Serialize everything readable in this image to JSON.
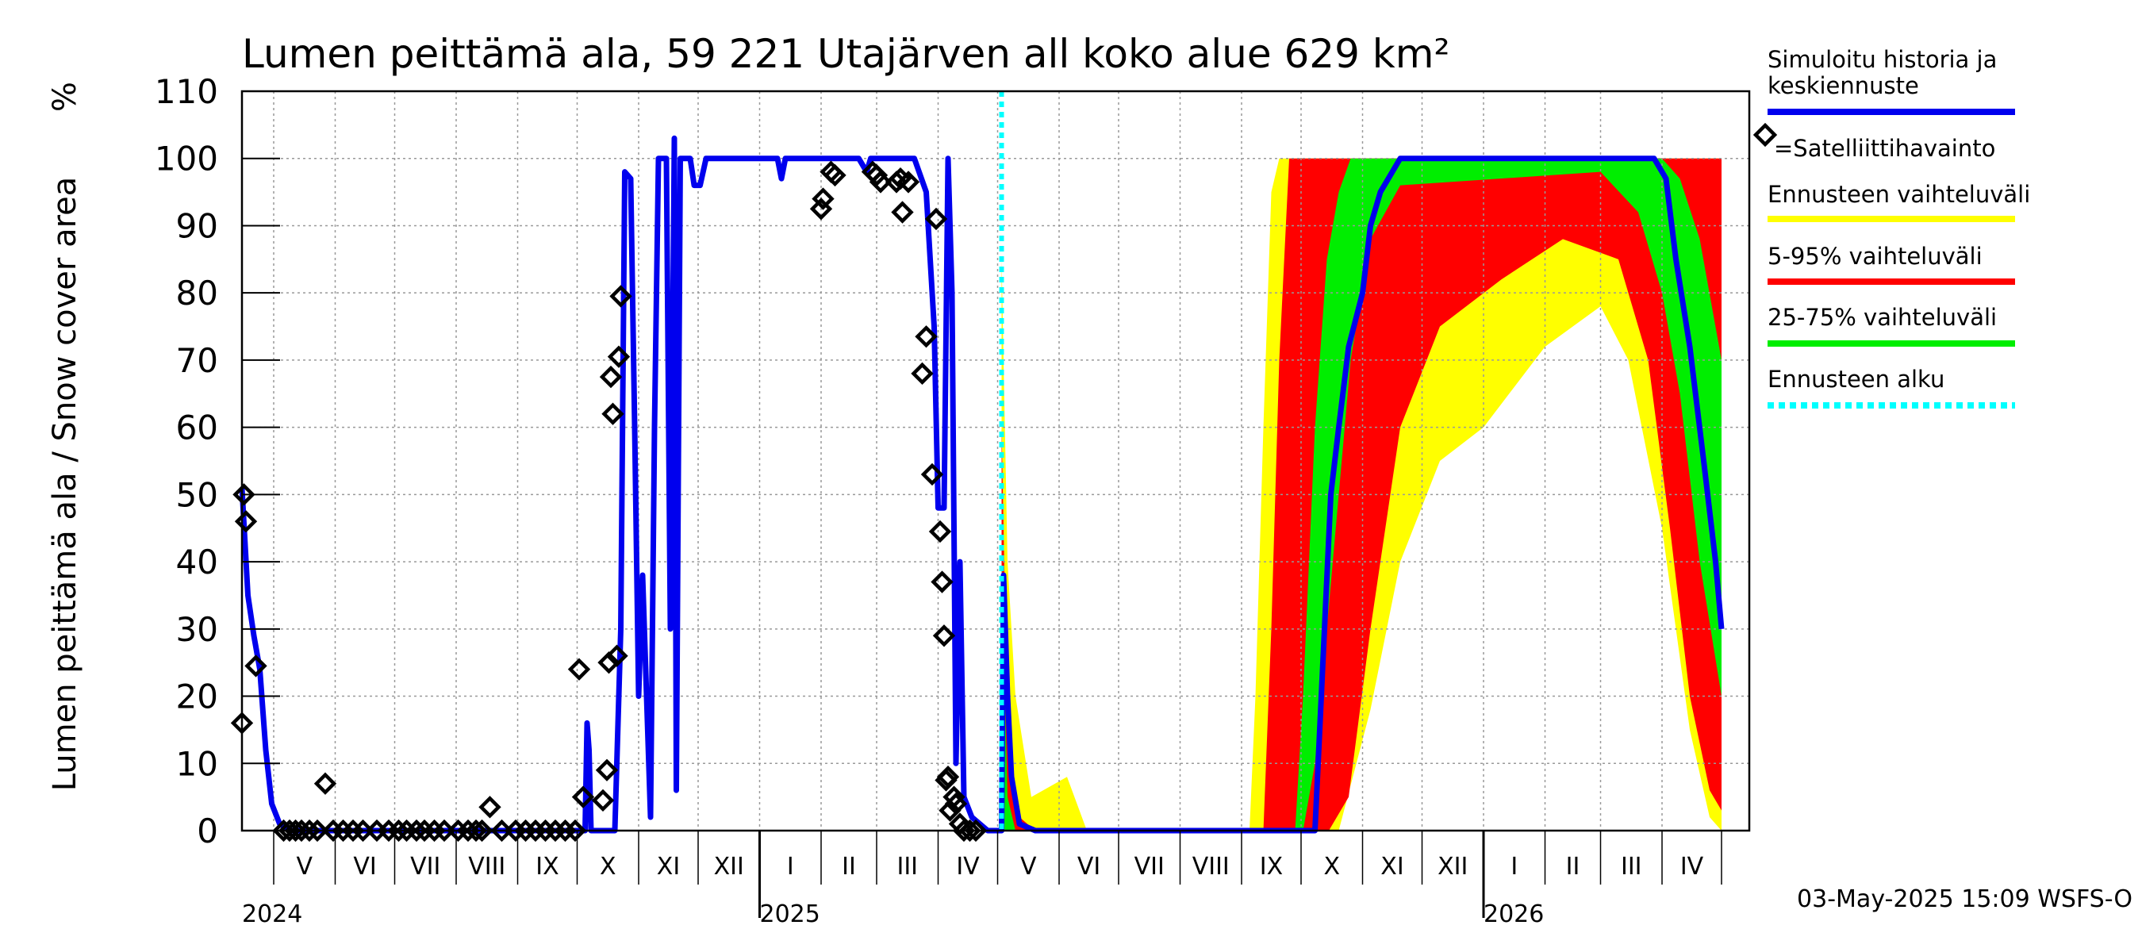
{
  "chart_data": {
    "type": "line",
    "title": "Lumen peittämä ala, 59 221 Utajärven all koko alue 629 km²",
    "ylabel": "Lumen peittämä ala / Snow cover area",
    "yunit": "%",
    "ylim": [
      0,
      110
    ],
    "yticks": [
      0,
      10,
      20,
      30,
      40,
      50,
      60,
      70,
      80,
      90,
      100,
      110
    ],
    "xlim": [
      "2024-04-15",
      "2026-05-15"
    ],
    "grid": true,
    "forecast_start": "2025-05-03",
    "months": [
      {
        "label": "V",
        "start": "2024-05-01"
      },
      {
        "label": "VI",
        "start": "2024-06-01"
      },
      {
        "label": "VII",
        "start": "2024-07-01"
      },
      {
        "label": "VIII",
        "start": "2024-08-01"
      },
      {
        "label": "IX",
        "start": "2024-09-01"
      },
      {
        "label": "X",
        "start": "2024-10-01"
      },
      {
        "label": "XI",
        "start": "2024-11-01"
      },
      {
        "label": "XII",
        "start": "2024-12-01"
      },
      {
        "label": "I",
        "start": "2025-01-01"
      },
      {
        "label": "II",
        "start": "2025-02-01"
      },
      {
        "label": "III",
        "start": "2025-03-01"
      },
      {
        "label": "IV",
        "start": "2025-04-01"
      },
      {
        "label": "V",
        "start": "2025-05-01"
      },
      {
        "label": "VI",
        "start": "2025-06-01"
      },
      {
        "label": "VII",
        "start": "2025-07-01"
      },
      {
        "label": "VIII",
        "start": "2025-08-01"
      },
      {
        "label": "IX",
        "start": "2025-09-01"
      },
      {
        "label": "X",
        "start": "2025-10-01"
      },
      {
        "label": "XI",
        "start": "2025-11-01"
      },
      {
        "label": "XII",
        "start": "2025-12-01"
      },
      {
        "label": "I",
        "start": "2026-01-01"
      },
      {
        "label": "II",
        "start": "2026-02-01"
      },
      {
        "label": "III",
        "start": "2026-03-01"
      },
      {
        "label": "IV",
        "start": "2026-04-01"
      }
    ],
    "month_end": "2026-05-01",
    "years": [
      {
        "label": "2024",
        "date": "2024-04-15",
        "tick": false
      },
      {
        "label": "2025",
        "date": "2025-01-01",
        "tick": true
      },
      {
        "label": "2026",
        "date": "2026-01-01",
        "tick": true
      }
    ],
    "legend": [
      {
        "label": "Simuloitu historia ja keskiennuste",
        "color": "#0000ee",
        "style": "line"
      },
      {
        "label": "=Satelliittihavainto",
        "color": "#000000",
        "style": "diamond"
      },
      {
        "label": "Ennusteen vaihteluväli",
        "color": "#ffff00",
        "style": "line"
      },
      {
        "label": "5-95% vaihteluväli",
        "color": "#ff0000",
        "style": "line"
      },
      {
        "label": "25-75% vaihteluväli",
        "color": "#00ee00",
        "style": "line"
      },
      {
        "label": "Ennusteen alku",
        "color": "#00ffff",
        "style": "dotted"
      }
    ],
    "series": [
      {
        "name": "Simuloitu historia ja keskiennuste",
        "color": "#0000ee",
        "points": [
          [
            "2024-04-15",
            51
          ],
          [
            "2024-04-18",
            35
          ],
          [
            "2024-04-21",
            29
          ],
          [
            "2024-04-24",
            24
          ],
          [
            "2024-04-27",
            12
          ],
          [
            "2024-04-30",
            4
          ],
          [
            "2024-05-04",
            1
          ],
          [
            "2024-05-10",
            0
          ],
          [
            "2024-10-05",
            0
          ],
          [
            "2024-10-06",
            16
          ],
          [
            "2024-10-07",
            12
          ],
          [
            "2024-10-08",
            0
          ],
          [
            "2024-10-20",
            0
          ],
          [
            "2024-10-23",
            30
          ],
          [
            "2024-10-25",
            98
          ],
          [
            "2024-10-28",
            97
          ],
          [
            "2024-10-30",
            60
          ],
          [
            "2024-11-01",
            20
          ],
          [
            "2024-11-03",
            38
          ],
          [
            "2024-11-05",
            20
          ],
          [
            "2024-11-07",
            2
          ],
          [
            "2024-11-09",
            60
          ],
          [
            "2024-11-11",
            100
          ],
          [
            "2024-11-15",
            100
          ],
          [
            "2024-11-17",
            30
          ],
          [
            "2024-11-19",
            103
          ],
          [
            "2024-11-20",
            6
          ],
          [
            "2024-11-22",
            100
          ],
          [
            "2024-11-27",
            100
          ],
          [
            "2024-11-29",
            96
          ],
          [
            "2024-12-02",
            96
          ],
          [
            "2024-12-05",
            100
          ],
          [
            "2025-01-10",
            100
          ],
          [
            "2025-01-12",
            97
          ],
          [
            "2025-01-14",
            100
          ],
          [
            "2025-02-20",
            100
          ],
          [
            "2025-02-24",
            98
          ],
          [
            "2025-02-26",
            100
          ],
          [
            "2025-03-20",
            100
          ],
          [
            "2025-03-26",
            95
          ],
          [
            "2025-03-30",
            75
          ],
          [
            "2025-04-01",
            48
          ],
          [
            "2025-04-04",
            48
          ],
          [
            "2025-04-06",
            100
          ],
          [
            "2025-04-08",
            80
          ],
          [
            "2025-04-10",
            10
          ],
          [
            "2025-04-12",
            40
          ],
          [
            "2025-04-14",
            5
          ],
          [
            "2025-04-18",
            2
          ],
          [
            "2025-04-22",
            1
          ],
          [
            "2025-04-26",
            0
          ],
          [
            "2025-04-29",
            0
          ],
          [
            "2025-05-03",
            0
          ],
          [
            "2025-05-04",
            38
          ],
          [
            "2025-05-06",
            20
          ],
          [
            "2025-05-08",
            8
          ],
          [
            "2025-05-12",
            1
          ],
          [
            "2025-05-20",
            0
          ],
          [
            "2025-10-08",
            0
          ],
          [
            "2025-10-12",
            25
          ],
          [
            "2025-10-16",
            50
          ],
          [
            "2025-10-20",
            60
          ],
          [
            "2025-10-25",
            72
          ],
          [
            "2025-11-01",
            80
          ],
          [
            "2025-11-05",
            90
          ],
          [
            "2025-11-10",
            95
          ],
          [
            "2025-11-20",
            100
          ],
          [
            "2026-03-28",
            100
          ],
          [
            "2026-04-03",
            97
          ],
          [
            "2026-04-08",
            85
          ],
          [
            "2026-04-15",
            72
          ],
          [
            "2026-04-22",
            55
          ],
          [
            "2026-04-28",
            40
          ],
          [
            "2026-05-01",
            30
          ]
        ]
      },
      {
        "name": "Satelliittihavainto",
        "color": "#000000",
        "points": [
          [
            "2024-04-15",
            16
          ],
          [
            "2024-04-16",
            50
          ],
          [
            "2024-04-17",
            46
          ],
          [
            "2024-04-22",
            24.5
          ],
          [
            "2024-05-06",
            0
          ],
          [
            "2024-05-09",
            0
          ],
          [
            "2024-05-12",
            0
          ],
          [
            "2024-05-15",
            0
          ],
          [
            "2024-05-19",
            0
          ],
          [
            "2024-05-23",
            0
          ],
          [
            "2024-05-27",
            7
          ],
          [
            "2024-05-31",
            0
          ],
          [
            "2024-06-05",
            0
          ],
          [
            "2024-06-10",
            0
          ],
          [
            "2024-06-15",
            0
          ],
          [
            "2024-06-22",
            0
          ],
          [
            "2024-06-28",
            0
          ],
          [
            "2024-07-03",
            0
          ],
          [
            "2024-07-07",
            0
          ],
          [
            "2024-07-12",
            0
          ],
          [
            "2024-07-16",
            0
          ],
          [
            "2024-07-21",
            0
          ],
          [
            "2024-07-26",
            0
          ],
          [
            "2024-08-02",
            0
          ],
          [
            "2024-08-07",
            0
          ],
          [
            "2024-08-11",
            0
          ],
          [
            "2024-08-14",
            0
          ],
          [
            "2024-08-18",
            3.5
          ],
          [
            "2024-08-24",
            0
          ],
          [
            "2024-08-31",
            0
          ],
          [
            "2024-09-05",
            0
          ],
          [
            "2024-09-10",
            0
          ],
          [
            "2024-09-15",
            0
          ],
          [
            "2024-09-20",
            0
          ],
          [
            "2024-09-25",
            0
          ],
          [
            "2024-09-30",
            0
          ],
          [
            "2024-10-02",
            24
          ],
          [
            "2024-10-04",
            5
          ],
          [
            "2024-10-14",
            4.5
          ],
          [
            "2024-10-16",
            9
          ],
          [
            "2024-10-17",
            25
          ],
          [
            "2024-10-18",
            67.5
          ],
          [
            "2024-10-19",
            62
          ],
          [
            "2024-10-21",
            26
          ],
          [
            "2024-10-22",
            70.5
          ],
          [
            "2024-10-23",
            79.5
          ],
          [
            "2025-02-01",
            92.5
          ],
          [
            "2025-02-02",
            94
          ],
          [
            "2025-02-06",
            98
          ],
          [
            "2025-02-08",
            97.5
          ],
          [
            "2025-02-27",
            98
          ],
          [
            "2025-03-01",
            97.5
          ],
          [
            "2025-03-03",
            96.5
          ],
          [
            "2025-03-11",
            96.5
          ],
          [
            "2025-03-13",
            97
          ],
          [
            "2025-03-14",
            92
          ],
          [
            "2025-03-17",
            96.5
          ],
          [
            "2025-03-24",
            68
          ],
          [
            "2025-03-26",
            73.5
          ],
          [
            "2025-03-29",
            53
          ],
          [
            "2025-03-31",
            91
          ],
          [
            "2025-04-02",
            44.5
          ],
          [
            "2025-04-03",
            37
          ],
          [
            "2025-04-04",
            29
          ],
          [
            "2025-04-05",
            7.5
          ],
          [
            "2025-04-06",
            8
          ],
          [
            "2025-04-07",
            3
          ],
          [
            "2025-04-09",
            5
          ],
          [
            "2025-04-10",
            4
          ],
          [
            "2025-04-12",
            1
          ],
          [
            "2025-04-14",
            0
          ],
          [
            "2025-04-17",
            0
          ],
          [
            "2025-04-20",
            0
          ]
        ]
      },
      {
        "name": "Ennusteen vaihteluväli",
        "color": "#ffff00",
        "points": [
          [
            "2025-05-03",
            0,
            85
          ],
          [
            "2025-05-06",
            0,
            40
          ],
          [
            "2025-05-10",
            0,
            20
          ],
          [
            "2025-05-18",
            0,
            5
          ],
          [
            "2025-06-05",
            0,
            8
          ],
          [
            "2025-06-15",
            0,
            0
          ],
          [
            "2025-09-05",
            0,
            0
          ],
          [
            "2025-09-08",
            0,
            20
          ],
          [
            "2025-09-12",
            0,
            60
          ],
          [
            "2025-09-16",
            0,
            95
          ],
          [
            "2025-09-20",
            0,
            100
          ],
          [
            "2025-10-05",
            0,
            100
          ],
          [
            "2025-10-10",
            0,
            100
          ],
          [
            "2025-10-20",
            0,
            100
          ],
          [
            "2025-11-05",
            18,
            100
          ],
          [
            "2025-11-20",
            40,
            100
          ],
          [
            "2025-12-10",
            55,
            100
          ],
          [
            "2026-01-01",
            60,
            100
          ],
          [
            "2026-02-01",
            72,
            100
          ],
          [
            "2026-03-01",
            78,
            100
          ],
          [
            "2026-03-15",
            70,
            100
          ],
          [
            "2026-04-01",
            45,
            100
          ],
          [
            "2026-04-15",
            15,
            100
          ],
          [
            "2026-04-25",
            2,
            100
          ],
          [
            "2026-05-01",
            0,
            100
          ]
        ]
      },
      {
        "name": "5-95% vaihteluväli",
        "color": "#ff0000",
        "points": [
          [
            "2025-05-03",
            0,
            60
          ],
          [
            "2025-05-06",
            0,
            15
          ],
          [
            "2025-05-12",
            0,
            2
          ],
          [
            "2025-05-20",
            0,
            0
          ],
          [
            "2025-09-12",
            0,
            0
          ],
          [
            "2025-09-16",
            0,
            30
          ],
          [
            "2025-09-20",
            0,
            70
          ],
          [
            "2025-09-25",
            0,
            100
          ],
          [
            "2025-10-15",
            0,
            100
          ],
          [
            "2025-10-25",
            5,
            100
          ],
          [
            "2025-11-05",
            30,
            100
          ],
          [
            "2025-11-20",
            60,
            100
          ],
          [
            "2025-12-10",
            75,
            100
          ],
          [
            "2026-01-10",
            82,
            100
          ],
          [
            "2026-02-10",
            88,
            100
          ],
          [
            "2026-03-10",
            85,
            100
          ],
          [
            "2026-03-25",
            70,
            100
          ],
          [
            "2026-04-05",
            45,
            100
          ],
          [
            "2026-04-15",
            20,
            100
          ],
          [
            "2026-04-25",
            6,
            100
          ],
          [
            "2026-05-01",
            3,
            100
          ]
        ]
      },
      {
        "name": "25-75% vaihteluväli",
        "color": "#00ee00",
        "points": [
          [
            "2025-05-03",
            0,
            40
          ],
          [
            "2025-05-06",
            0,
            5
          ],
          [
            "2025-05-10",
            0,
            0
          ],
          [
            "2025-09-28",
            0,
            0
          ],
          [
            "2025-10-02",
            0,
            20
          ],
          [
            "2025-10-08",
            10,
            60
          ],
          [
            "2025-10-14",
            30,
            85
          ],
          [
            "2025-10-20",
            50,
            95
          ],
          [
            "2025-10-26",
            70,
            100
          ],
          [
            "2025-11-05",
            88,
            100
          ],
          [
            "2025-11-20",
            96,
            100
          ],
          [
            "2026-03-01",
            98,
            100
          ],
          [
            "2026-03-20",
            92,
            100
          ],
          [
            "2026-04-01",
            80,
            100
          ],
          [
            "2026-04-10",
            65,
            97
          ],
          [
            "2026-04-20",
            40,
            88
          ],
          [
            "2026-05-01",
            20,
            70
          ]
        ]
      }
    ]
  },
  "footer": {
    "timestamp": "03-May-2025 15:09 WSFS-O"
  }
}
